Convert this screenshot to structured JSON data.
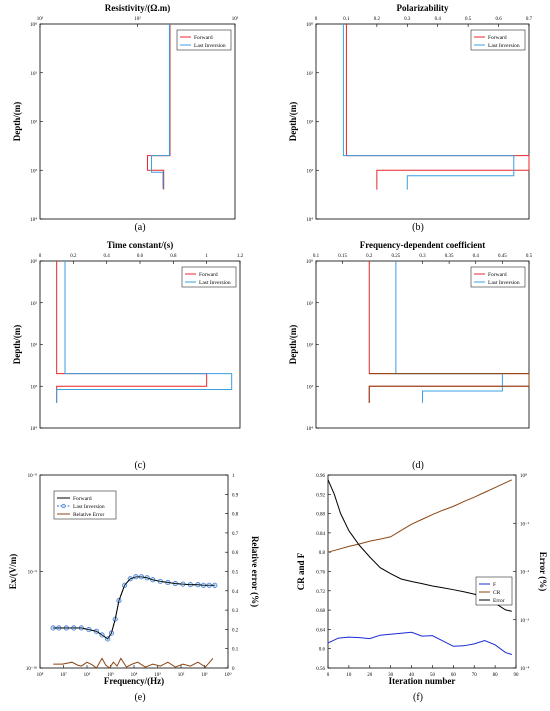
{
  "chart_data": [
    {
      "panel": "a",
      "type": "line",
      "caption": "(a)",
      "title": "Resistivity/(Ω.m)",
      "xlabel": "Resistivity/(Ω.m)",
      "ylabel": "Depth/(m)",
      "xscale": "log",
      "yscale": "log",
      "yinverted": true,
      "xlim": [
        1,
        1000
      ],
      "ylim": [
        1,
        10000
      ],
      "xticks": [
        "10¹",
        "10²",
        "10³"
      ],
      "yticks": [
        "10⁰",
        "10¹",
        "10²",
        "10³",
        "10⁴"
      ],
      "legend": {
        "placement": "top-right",
        "entries": [
          "Forward",
          "Last Inversion"
        ]
      },
      "series": [
        {
          "name": "Forward",
          "color": "#e8262c",
          "points": [
            [
              100,
              1
            ],
            [
              100,
              500
            ],
            [
              45,
              500
            ],
            [
              45,
              1000
            ],
            [
              65,
              1000
            ],
            [
              65,
              1000
            ],
            [
              80,
              1000
            ],
            [
              80,
              2500
            ]
          ]
        },
        {
          "name": "Last Inversion",
          "color": "#3b9fe0",
          "points": [
            [
              98,
              1
            ],
            [
              98,
              500
            ],
            [
              52,
              500
            ],
            [
              52,
              1100
            ],
            [
              78,
              1100
            ],
            [
              78,
              2400
            ]
          ]
        }
      ]
    },
    {
      "panel": "b",
      "type": "line",
      "caption": "(b)",
      "title": "Polarizability",
      "xlabel": "Polarizability",
      "ylabel": "Depth/(m)",
      "xscale": "linear",
      "yscale": "log",
      "yinverted": true,
      "xlim": [
        0,
        0.7
      ],
      "ylim": [
        1,
        10000
      ],
      "xticks": [
        "0",
        "0.1",
        "0.2",
        "0.3",
        "0.4",
        "0.5",
        "0.6",
        "0.7"
      ],
      "yticks": [
        "10⁰",
        "10¹",
        "10²",
        "10³",
        "10⁴"
      ],
      "legend": {
        "placement": "top-right",
        "entries": [
          "Forward",
          "Last Inversion"
        ]
      },
      "series": [
        {
          "name": "Forward",
          "color": "#e8262c",
          "points": [
            [
              0.1,
              1
            ],
            [
              0.1,
              500
            ],
            [
              0.7,
              500
            ],
            [
              0.7,
              1000
            ],
            [
              0.2,
              1000
            ],
            [
              0.2,
              2500
            ]
          ]
        },
        {
          "name": "Last Inversion",
          "color": "#3b9fe0",
          "points": [
            [
              0.09,
              1
            ],
            [
              0.09,
              500
            ],
            [
              0.65,
              500
            ],
            [
              0.65,
              1300
            ],
            [
              0.3,
              1300
            ],
            [
              0.3,
              2500
            ]
          ]
        }
      ]
    },
    {
      "panel": "c",
      "type": "line",
      "caption": "(c)",
      "title": "Time constant/(s)",
      "xlabel": "Time constant/(s)",
      "ylabel": "Depth/(m)",
      "xscale": "linear",
      "yscale": "log",
      "yinverted": true,
      "xlim": [
        0,
        1.2
      ],
      "ylim": [
        1,
        10000
      ],
      "xticks": [
        "0",
        "0.2",
        "0.4",
        "0.6",
        "0.8",
        "1",
        "1.2"
      ],
      "yticks": [
        "10⁰",
        "10¹",
        "10²",
        "10³",
        "10⁴"
      ],
      "legend": {
        "placement": "top-right",
        "entries": [
          "Forward",
          "Last Inversion"
        ]
      },
      "series": [
        {
          "name": "Forward",
          "color": "#e8262c",
          "points": [
            [
              0.1,
              1
            ],
            [
              0.1,
              500
            ],
            [
              1.0,
              500
            ],
            [
              1.0,
              1000
            ],
            [
              0.1,
              1000
            ],
            [
              0.1,
              2500
            ]
          ]
        },
        {
          "name": "Last Inversion",
          "color": "#3b9fe0",
          "points": [
            [
              0.15,
              1
            ],
            [
              0.15,
              500
            ],
            [
              1.15,
              500
            ],
            [
              1.15,
              1200
            ],
            [
              0.1,
              1200
            ],
            [
              0.1,
              2500
            ]
          ]
        }
      ]
    },
    {
      "panel": "d",
      "type": "line",
      "caption": "(d)",
      "title": "Frequency-dependent coefficient",
      "xlabel": "Frequency-dependent coefficient",
      "ylabel": "Depth/(m)",
      "xscale": "linear",
      "yscale": "log",
      "yinverted": true,
      "xlim": [
        0.1,
        0.5
      ],
      "ylim": [
        1,
        10000
      ],
      "xticks": [
        "0.1",
        "0.15",
        "0.2",
        "0.25",
        "0.3",
        "0.35",
        "0.4",
        "0.45",
        "0.5"
      ],
      "yticks": [
        "10⁰",
        "10¹",
        "10²",
        "10³",
        "10⁴"
      ],
      "legend": {
        "placement": "top-right",
        "entries": [
          "Forward",
          "Last Inversion"
        ]
      },
      "series": [
        {
          "name": "Forward",
          "color": "#e8262c",
          "points": [
            [
              0.2,
              1
            ],
            [
              0.2,
              500
            ],
            [
              0.5,
              500
            ],
            [
              0.5,
              1000
            ],
            [
              0.2,
              1000
            ],
            [
              0.2,
              2500
            ]
          ]
        },
        {
          "name": "Last Inversion",
          "color": "#3b9fe0",
          "points": [
            [
              0.25,
              1
            ],
            [
              0.25,
              500
            ],
            [
              0.45,
              500
            ],
            [
              0.45,
              1300
            ],
            [
              0.3,
              1300
            ],
            [
              0.3,
              2500
            ]
          ]
        },
        {
          "name": "",
          "color": "#8b4513",
          "points": [
            [
              0.2,
              500
            ],
            [
              0.5,
              500
            ],
            [
              0.5,
              1000
            ],
            [
              0.2,
              1000
            ],
            [
              0.2,
              2500
            ]
          ]
        }
      ]
    },
    {
      "panel": "e",
      "type": "line",
      "caption": "(e)",
      "xlabel": "Frequency/(Hz)",
      "ylabel": "Ex/(V/m)",
      "ylabel_right": "Relative error (%)",
      "xscale": "log",
      "yscale": "log",
      "xlim": [
        1,
        100000000
      ],
      "ylim": [
        1e-10,
        1e-08
      ],
      "xticks": [
        "10⁰",
        "10¹",
        "10²",
        "10³",
        "10⁴",
        "10⁵",
        "10⁶",
        "10⁷",
        "10⁸"
      ],
      "xticks_display": [
        "10⁸",
        "10⁷",
        "10⁶",
        "10⁵",
        "10⁴",
        "10³",
        "10²",
        "10¹",
        "10⁰"
      ],
      "yticks": [
        "10⁻¹⁰",
        "10⁻⁹",
        "10⁻⁸"
      ],
      "y2lim": [
        0,
        1
      ],
      "y2ticks": [
        "0",
        "0.1",
        "0.2",
        "0.3",
        "0.4",
        "0.5",
        "0.6",
        "0.7",
        "0.8",
        "0.9",
        "1"
      ],
      "legend": {
        "placement": "top-left",
        "entries": [
          "Forward",
          "Last Inversion",
          "Relative Error"
        ]
      },
      "series": [
        {
          "name": "Forward",
          "color": "#000000",
          "axis": "left",
          "x_pos": [
            0.07,
            0.1,
            0.14,
            0.18,
            0.22,
            0.26,
            0.3,
            0.33,
            0.36,
            0.38,
            0.4,
            0.42,
            0.45,
            0.48,
            0.51,
            0.54,
            0.57,
            0.6,
            0.64,
            0.68,
            0.72,
            0.76,
            0.8,
            0.84,
            0.87,
            0.9,
            0.93
          ],
          "y": [
            2.6e-10,
            2.6e-10,
            2.6e-10,
            2.6e-10,
            2.6e-10,
            2.5e-10,
            2.4e-10,
            2.2e-10,
            2e-10,
            2.3e-10,
            3.2e-10,
            5e-10,
            7.2e-10,
            8.4e-10,
            8.8e-10,
            8.8e-10,
            8.6e-10,
            8.2e-10,
            7.9e-10,
            7.7e-10,
            7.5e-10,
            7.4e-10,
            7.3e-10,
            7.3e-10,
            7.2e-10,
            7.2e-10,
            7.2e-10
          ]
        },
        {
          "name": "Last Inversion",
          "color": "#3b6fd6",
          "axis": "left",
          "marker": "circle",
          "x_pos": [
            0.07,
            0.1,
            0.14,
            0.18,
            0.22,
            0.26,
            0.3,
            0.33,
            0.36,
            0.38,
            0.4,
            0.42,
            0.45,
            0.48,
            0.51,
            0.54,
            0.57,
            0.6,
            0.64,
            0.68,
            0.72,
            0.76,
            0.8,
            0.84,
            0.87,
            0.9,
            0.93
          ],
          "y": [
            2.6e-10,
            2.6e-10,
            2.6e-10,
            2.6e-10,
            2.6e-10,
            2.5e-10,
            2.4e-10,
            2.2e-10,
            2e-10,
            2.3e-10,
            3.2e-10,
            5e-10,
            7.2e-10,
            8.4e-10,
            8.8e-10,
            8.8e-10,
            8.6e-10,
            8.2e-10,
            7.9e-10,
            7.7e-10,
            7.5e-10,
            7.4e-10,
            7.3e-10,
            7.3e-10,
            7.2e-10,
            7.2e-10,
            7.2e-10
          ]
        },
        {
          "name": "Relative Error",
          "color": "#8b4513",
          "axis": "right",
          "x_pos": [
            0.07,
            0.12,
            0.17,
            0.2,
            0.22,
            0.25,
            0.28,
            0.3,
            0.33,
            0.35,
            0.37,
            0.39,
            0.41,
            0.43,
            0.46,
            0.49,
            0.52,
            0.56,
            0.6,
            0.64,
            0.68,
            0.72,
            0.76,
            0.8,
            0.84,
            0.88,
            0.92
          ],
          "y": [
            0.02,
            0.02,
            0.03,
            0.015,
            0.01,
            0.03,
            0.015,
            0.0,
            0.05,
            0.015,
            0.0,
            0.03,
            0.01,
            0.05,
            0.005,
            0.02,
            0.03,
            0.005,
            0.02,
            0.01,
            0.03,
            0.005,
            0.02,
            0.01,
            0.03,
            0.005,
            0.05
          ]
        }
      ]
    },
    {
      "panel": "f",
      "type": "line",
      "caption": "(f)",
      "xlabel": "Iteration number",
      "ylabel": "CR and F",
      "ylabel_right": "Error (%)",
      "xlim": [
        0,
        90
      ],
      "ylim": [
        0.56,
        0.96
      ],
      "xticks": [
        "0",
        "10",
        "20",
        "30",
        "40",
        "50",
        "60",
        "70",
        "80",
        "90"
      ],
      "yticks": [
        "0.56",
        "0.6",
        "0.64",
        "0.68",
        "0.72",
        "0.76",
        "0.8",
        "0.84",
        "0.88",
        "0.92",
        "0.96"
      ],
      "y2scale": "log",
      "y2lim": [
        0.0001,
        1
      ],
      "y2ticks": [
        "10⁻⁴",
        "10⁻³",
        "10⁻²",
        "10⁻¹",
        "10⁰"
      ],
      "legend": {
        "placement": "middle-right",
        "entries": [
          "F",
          "CR",
          "Error"
        ]
      },
      "series": [
        {
          "name": "F",
          "color": "#1a2bd6",
          "axis": "left",
          "x": [
            0,
            5,
            10,
            15,
            20,
            25,
            30,
            35,
            40,
            45,
            50,
            55,
            60,
            65,
            70,
            75,
            80,
            85,
            88
          ],
          "y": [
            0.612,
            0.622,
            0.624,
            0.623,
            0.621,
            0.628,
            0.63,
            0.632,
            0.634,
            0.626,
            0.627,
            0.616,
            0.605,
            0.606,
            0.61,
            0.617,
            0.608,
            0.592,
            0.588
          ]
        },
        {
          "name": "CR",
          "color": "#8b4513",
          "axis": "left",
          "x": [
            0,
            5,
            10,
            15,
            20,
            25,
            30,
            35,
            40,
            45,
            50,
            55,
            60,
            65,
            70,
            75,
            80,
            85,
            88
          ],
          "y": [
            0.8,
            0.806,
            0.812,
            0.817,
            0.823,
            0.827,
            0.832,
            0.845,
            0.858,
            0.868,
            0.878,
            0.887,
            0.895,
            0.905,
            0.914,
            0.924,
            0.934,
            0.944,
            0.95
          ]
        },
        {
          "name": "Error",
          "color": "#000000",
          "axis": "right",
          "x": [
            0,
            3,
            6,
            10,
            15,
            20,
            25,
            30,
            35,
            40,
            45,
            50,
            55,
            60,
            65,
            70,
            75,
            80,
            85,
            88
          ],
          "y": [
            0.8,
            0.4,
            0.16,
            0.07,
            0.035,
            0.02,
            0.012,
            0.009,
            0.007,
            0.0062,
            0.0056,
            0.005,
            0.0046,
            0.0042,
            0.0038,
            0.0034,
            0.0029,
            0.0022,
            0.0016,
            0.0015
          ]
        }
      ]
    }
  ]
}
